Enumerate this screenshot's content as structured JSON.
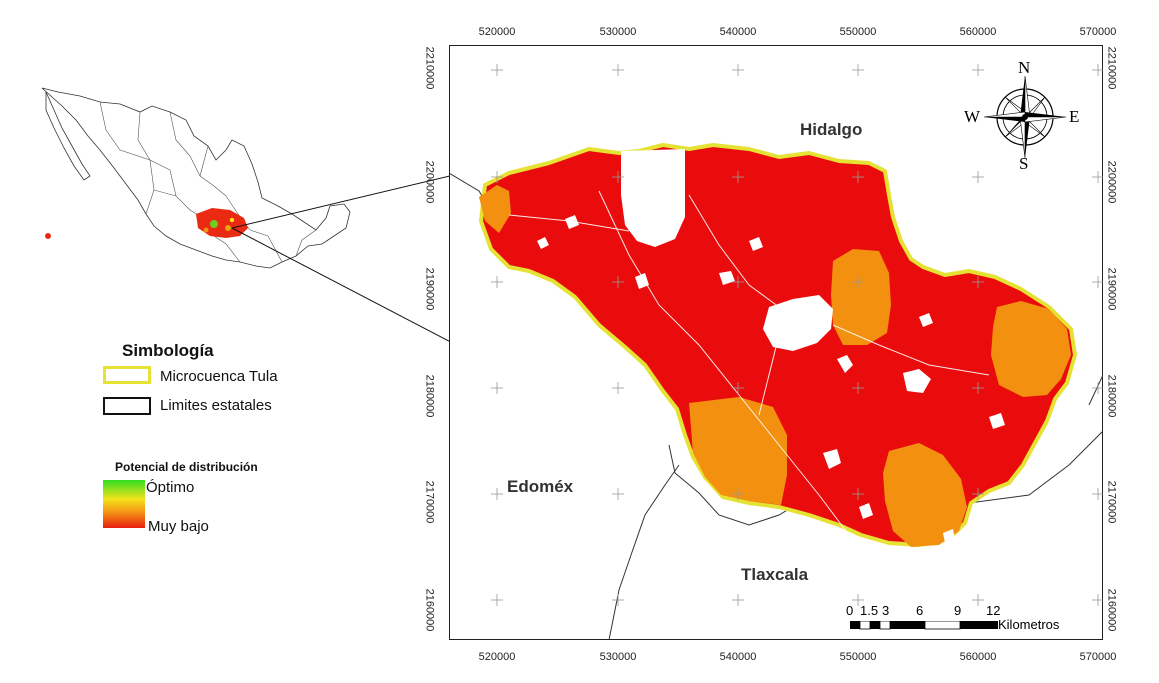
{
  "inset_map": {
    "name": "mexico-inset-map"
  },
  "main_map": {
    "top_ticks": [
      "520000",
      "530000",
      "540000",
      "550000",
      "560000",
      "570000"
    ],
    "bottom_ticks": [
      "520000",
      "530000",
      "540000",
      "550000",
      "560000",
      "570000"
    ],
    "left_ticks": [
      "2210000",
      "2200000",
      "2190000",
      "2180000",
      "2170000",
      "2160000"
    ],
    "right_ticks": [
      "2210000",
      "2200000",
      "2190000",
      "2180000",
      "2170000",
      "2160000"
    ],
    "state_labels": {
      "hidalgo": "Hidalgo",
      "edomex": "Edoméx",
      "tlaxcala": "Tlaxcala"
    },
    "colors": {
      "basin_fill": "#ea0c0c",
      "basin_outline": "#e6e234",
      "moderate_zone": "#f4900f",
      "urban_gaps": "#ffffff"
    }
  },
  "compass": {
    "north": "N",
    "south": "S",
    "east": "E",
    "west": "W"
  },
  "scale_bar": {
    "labels": [
      "0",
      "1.5",
      "3",
      "6",
      "9",
      "12"
    ],
    "unit": "Kilometros"
  },
  "legend": {
    "title": "Simbología",
    "items": [
      {
        "label": "Microcuenca Tula",
        "color": "#e6e234"
      },
      {
        "label": "Limites estatales",
        "color": "#111111"
      }
    ],
    "distribution": {
      "title": "Potencial de distribución",
      "high_label": "Óptimo",
      "low_label": "Muy bajo",
      "gradient": [
        "#33dd22",
        "#f3e31a",
        "#f48a14",
        "#e81e10"
      ]
    }
  }
}
